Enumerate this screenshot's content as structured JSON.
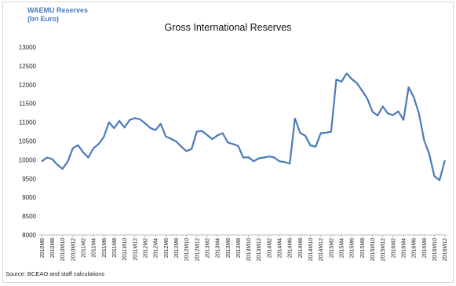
{
  "chart_data": {
    "type": "line",
    "title": "Gross International Reserves",
    "unit_label": [
      "WAEMU Reserves",
      "(bn Euro)"
    ],
    "source": "Source: BCEAO and staff calculations",
    "ylim": [
      8000,
      13000
    ],
    "yticks": [
      "8000",
      "8500",
      "9000",
      "9500",
      "10000",
      "10500",
      "11000",
      "11500",
      "12000",
      "12500",
      "13000"
    ],
    "grid": false,
    "legend": "none",
    "line_color": "#4a7ab8",
    "x_tick_labels": [
      "2010M6",
      "2010M8",
      "2010M10",
      "2010M12",
      "2011M2",
      "2011M4",
      "2011M6",
      "2011M8",
      "2011M10",
      "2011M12",
      "2012M2",
      "2012M4",
      "2012M6",
      "2012M8",
      "2012M10",
      "2012M12",
      "2013M2",
      "2013M4",
      "2013M6",
      "2013M8",
      "2013M10",
      "2013M12",
      "2014M2",
      "2014M4",
      "2014M6",
      "2014M8",
      "2014M10",
      "2014M12",
      "2015M2",
      "2015M4",
      "2015M6",
      "2015M8",
      "2015M10",
      "2015M12",
      "2016M2",
      "2016M4",
      "2016M6",
      "2016M8",
      "2016M10",
      "2016M12"
    ],
    "x": [
      "2010M6",
      "2010M7",
      "2010M8",
      "2010M9",
      "2010M10",
      "2010M11",
      "2010M12",
      "2011M1",
      "2011M2",
      "2011M3",
      "2011M4",
      "2011M5",
      "2011M6",
      "2011M7",
      "2011M8",
      "2011M9",
      "2011M10",
      "2011M11",
      "2011M12",
      "2012M1",
      "2012M2",
      "2012M3",
      "2012M4",
      "2012M5",
      "2012M6",
      "2012M7",
      "2012M8",
      "2012M9",
      "2012M10",
      "2012M11",
      "2012M12",
      "2013M1",
      "2013M2",
      "2013M3",
      "2013M4",
      "2013M5",
      "2013M6",
      "2013M7",
      "2013M8",
      "2013M9",
      "2013M10",
      "2013M11",
      "2013M12",
      "2014M1",
      "2014M2",
      "2014M3",
      "2014M4",
      "2014M5",
      "2014M6",
      "2014M7",
      "2014M8",
      "2014M9",
      "2014M10",
      "2014M11",
      "2014M12",
      "2015M1",
      "2015M2",
      "2015M3",
      "2015M4",
      "2015M5",
      "2015M6",
      "2015M7",
      "2015M8",
      "2015M9",
      "2015M10",
      "2015M11",
      "2015M12",
      "2016M1",
      "2016M2",
      "2016M3",
      "2016M4",
      "2016M5",
      "2016M6",
      "2016M7",
      "2016M8",
      "2016M9",
      "2016M10",
      "2016M11",
      "2016M12"
    ],
    "series": [
      {
        "values": [
          9960,
          10060,
          10020,
          9870,
          9760,
          9950,
          10310,
          10390,
          10200,
          10060,
          10310,
          10420,
          10610,
          11000,
          10840,
          11040,
          10860,
          11060,
          11110,
          11080,
          10970,
          10850,
          10790,
          10960,
          10620,
          10560,
          10490,
          10350,
          10230,
          10290,
          10750,
          10770,
          10660,
          10550,
          10650,
          10710,
          10460,
          10420,
          10370,
          10060,
          10070,
          9960,
          10040,
          10060,
          10090,
          10060,
          9960,
          9940,
          9900,
          11100,
          10720,
          10640,
          10380,
          10350,
          10710,
          10720,
          10750,
          12140,
          12080,
          12300,
          12150,
          12040,
          11840,
          11630,
          11280,
          11180,
          11420,
          11230,
          11190,
          11290,
          11060,
          11930,
          11670,
          11230,
          10520,
          10150,
          9560,
          9460,
          9980
        ]
      }
    ]
  }
}
